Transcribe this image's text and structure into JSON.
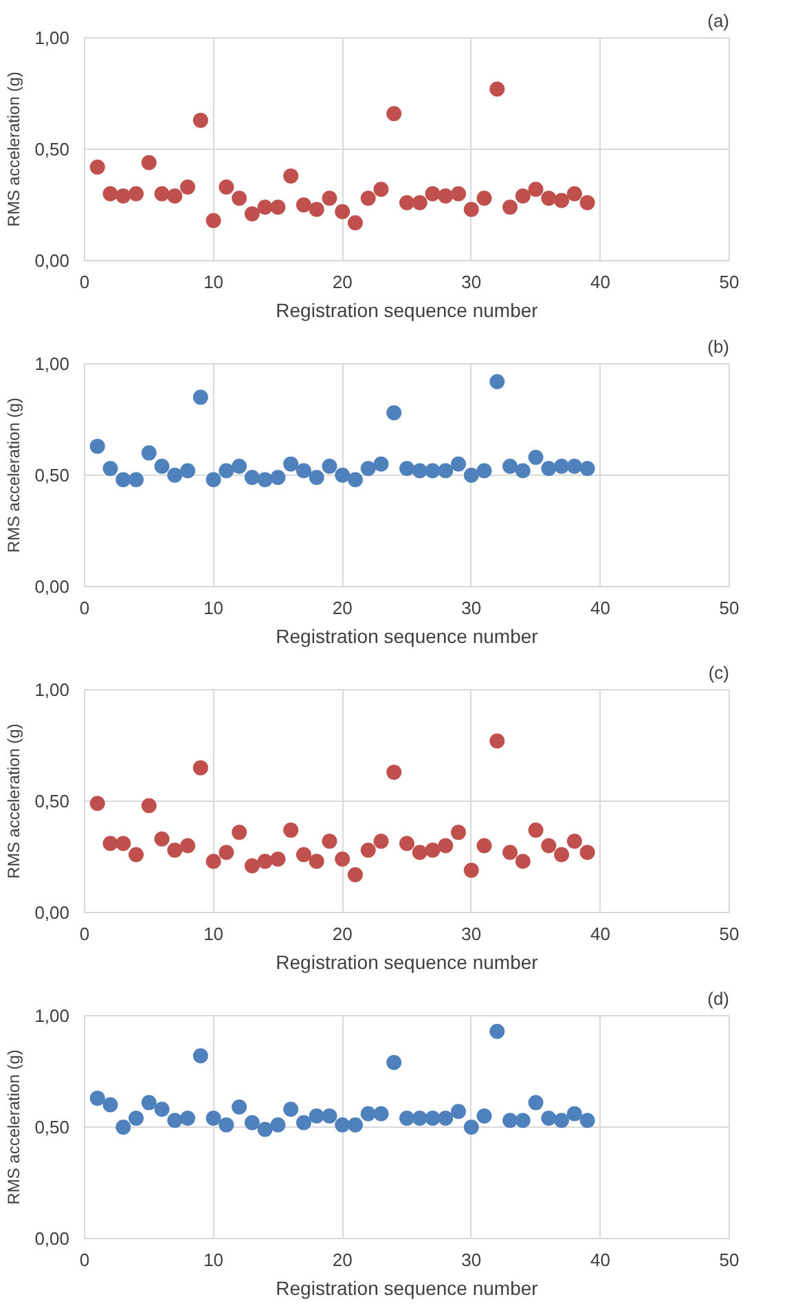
{
  "chart_data": [
    {
      "type": "scatter",
      "title": "(a)",
      "xlabel": "Registration sequence number",
      "ylabel": "RMS acceleration (g)",
      "marker": "circle",
      "grid": true,
      "xlim": [
        0,
        50
      ],
      "xticks": [
        0,
        10,
        20,
        30,
        40,
        50
      ],
      "ylim": [
        0,
        1
      ],
      "yticks": [
        {
          "value": 0,
          "label": "0,00"
        },
        {
          "value": 0.5,
          "label": "0,50"
        },
        {
          "value": 1,
          "label": "1,00"
        }
      ],
      "x": [
        1,
        2,
        3,
        4,
        5,
        6,
        7,
        8,
        9,
        10,
        11,
        12,
        13,
        14,
        15,
        16,
        17,
        18,
        19,
        20,
        21,
        22,
        23,
        24,
        25,
        26,
        27,
        28,
        29,
        30,
        31,
        32,
        33,
        34,
        35,
        36,
        37,
        38,
        39
      ],
      "series": [
        {
          "color": "#c0504d",
          "values": [
            0.42,
            0.3,
            0.29,
            0.3,
            0.44,
            0.3,
            0.29,
            0.33,
            0.63,
            0.18,
            0.33,
            0.28,
            0.21,
            0.24,
            0.24,
            0.38,
            0.25,
            0.23,
            0.28,
            0.22,
            0.17,
            0.28,
            0.32,
            0.66,
            0.26,
            0.26,
            0.3,
            0.29,
            0.3,
            0.23,
            0.28,
            0.77,
            0.24,
            0.29,
            0.32,
            0.28,
            0.27,
            0.3,
            0.26
          ]
        }
      ]
    },
    {
      "type": "scatter",
      "title": "(b)",
      "xlabel": "Registration sequence number",
      "ylabel": "RMS acceleration (g)",
      "marker": "circle",
      "grid": true,
      "xlim": [
        0,
        50
      ],
      "xticks": [
        0,
        10,
        20,
        30,
        40,
        50
      ],
      "ylim": [
        0,
        1
      ],
      "yticks": [
        {
          "value": 0,
          "label": "0,00"
        },
        {
          "value": 0.5,
          "label": "0,50"
        },
        {
          "value": 1,
          "label": "1,00"
        }
      ],
      "x": [
        1,
        2,
        3,
        4,
        5,
        6,
        7,
        8,
        9,
        10,
        11,
        12,
        13,
        14,
        15,
        16,
        17,
        18,
        19,
        20,
        21,
        22,
        23,
        24,
        25,
        26,
        27,
        28,
        29,
        30,
        31,
        32,
        33,
        34,
        35,
        36,
        37,
        38,
        39
      ],
      "series": [
        {
          "color": "#4f81bd",
          "values": [
            0.63,
            0.53,
            0.48,
            0.48,
            0.6,
            0.54,
            0.5,
            0.52,
            0.85,
            0.48,
            0.52,
            0.54,
            0.49,
            0.48,
            0.49,
            0.55,
            0.52,
            0.49,
            0.54,
            0.5,
            0.48,
            0.53,
            0.55,
            0.78,
            0.53,
            0.52,
            0.52,
            0.52,
            0.55,
            0.5,
            0.52,
            0.92,
            0.54,
            0.52,
            0.58,
            0.53,
            0.54,
            0.54,
            0.53
          ]
        }
      ]
    },
    {
      "type": "scatter",
      "title": "(c)",
      "xlabel": "Registration sequence number",
      "ylabel": "RMS acceleration (g)",
      "marker": "circle",
      "grid": true,
      "xlim": [
        0,
        50
      ],
      "xticks": [
        0,
        10,
        20,
        30,
        40,
        50
      ],
      "ylim": [
        0,
        1
      ],
      "yticks": [
        {
          "value": 0,
          "label": "0,00"
        },
        {
          "value": 0.5,
          "label": "0,50"
        },
        {
          "value": 1,
          "label": "1,00"
        }
      ],
      "x": [
        1,
        2,
        3,
        4,
        5,
        6,
        7,
        8,
        9,
        10,
        11,
        12,
        13,
        14,
        15,
        16,
        17,
        18,
        19,
        20,
        21,
        22,
        23,
        24,
        25,
        26,
        27,
        28,
        29,
        30,
        31,
        32,
        33,
        34,
        35,
        36,
        37,
        38,
        39
      ],
      "series": [
        {
          "color": "#c0504d",
          "values": [
            0.49,
            0.31,
            0.31,
            0.26,
            0.48,
            0.33,
            0.28,
            0.3,
            0.65,
            0.23,
            0.27,
            0.36,
            0.21,
            0.23,
            0.24,
            0.37,
            0.26,
            0.23,
            0.32,
            0.24,
            0.17,
            0.28,
            0.32,
            0.63,
            0.31,
            0.27,
            0.28,
            0.3,
            0.36,
            0.19,
            0.3,
            0.77,
            0.27,
            0.23,
            0.37,
            0.3,
            0.26,
            0.32,
            0.27
          ]
        }
      ]
    },
    {
      "type": "scatter",
      "title": "(d)",
      "xlabel": "Registration sequence number",
      "ylabel": "RMS acceleration (g)",
      "marker": "circle",
      "grid": true,
      "xlim": [
        0,
        50
      ],
      "xticks": [
        0,
        10,
        20,
        30,
        40,
        50
      ],
      "ylim": [
        0,
        1
      ],
      "yticks": [
        {
          "value": 0,
          "label": "0,00"
        },
        {
          "value": 0.5,
          "label": "0,50"
        },
        {
          "value": 1,
          "label": "1,00"
        }
      ],
      "x": [
        1,
        2,
        3,
        4,
        5,
        6,
        7,
        8,
        9,
        10,
        11,
        12,
        13,
        14,
        15,
        16,
        17,
        18,
        19,
        20,
        21,
        22,
        23,
        24,
        25,
        26,
        27,
        28,
        29,
        30,
        31,
        32,
        33,
        34,
        35,
        36,
        37,
        38,
        39
      ],
      "series": [
        {
          "color": "#4f81bd",
          "values": [
            0.63,
            0.6,
            0.5,
            0.54,
            0.61,
            0.58,
            0.53,
            0.54,
            0.82,
            0.54,
            0.51,
            0.59,
            0.52,
            0.49,
            0.51,
            0.58,
            0.52,
            0.55,
            0.55,
            0.51,
            0.51,
            0.56,
            0.56,
            0.79,
            0.54,
            0.54,
            0.54,
            0.54,
            0.57,
            0.5,
            0.55,
            0.93,
            0.53,
            0.53,
            0.61,
            0.54,
            0.53,
            0.56,
            0.53
          ]
        }
      ]
    }
  ]
}
